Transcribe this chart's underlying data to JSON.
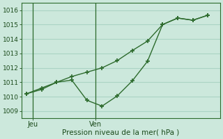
{
  "background_color": "#cce8dc",
  "plot_bg_color": "#cce8dc",
  "grid_color": "#aad4c4",
  "line_color": "#2d6b2d",
  "ylabel_ticks": [
    1009,
    1010,
    1011,
    1012,
    1013,
    1014,
    1015,
    1016
  ],
  "ylim": [
    1008.5,
    1016.5
  ],
  "xlabel": "Pression niveau de la mer( hPa )",
  "day_labels": [
    "Jeu",
    "Ven"
  ],
  "vline1_x": 0.5,
  "vline2_x": 4.5,
  "line1_x": [
    0,
    1,
    2,
    3,
    4,
    5,
    6,
    7,
    8,
    9,
    10,
    11,
    12
  ],
  "line1_y": [
    1010.2,
    1010.5,
    1011.0,
    1011.4,
    1011.7,
    1012.0,
    1012.5,
    1013.2,
    1013.85,
    1015.0,
    1015.45,
    1015.3,
    1015.65
  ],
  "line2_x": [
    0,
    1,
    2,
    3,
    4,
    5,
    6,
    7,
    8,
    9,
    10,
    11,
    12
  ],
  "line2_y": [
    1010.2,
    1010.6,
    1011.0,
    1011.15,
    1009.75,
    1009.35,
    1010.05,
    1011.1,
    1012.45,
    1015.0,
    1015.45,
    1015.3,
    1015.65
  ],
  "xlim": [
    -0.3,
    12.8
  ],
  "figsize": [
    3.2,
    2.0
  ],
  "dpi": 100,
  "vline_jeu_x": 0.42,
  "vline_ven_x": 4.58
}
